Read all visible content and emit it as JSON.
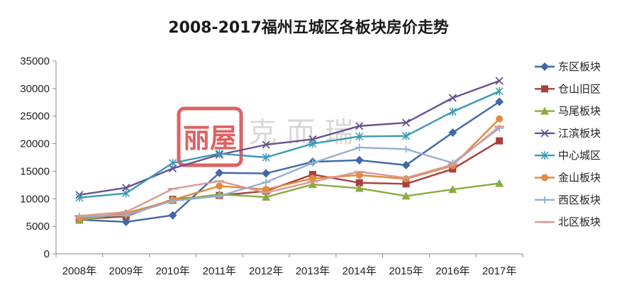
{
  "chart_data": {
    "type": "line",
    "title": "2008-2017福州五城区各板块房价走势",
    "xlabel": "",
    "ylabel": "",
    "categories": [
      "2008年",
      "2009年",
      "2010年",
      "2011年",
      "2012年",
      "2013年",
      "2014年",
      "2015年",
      "2016年",
      "2017年"
    ],
    "ylim": [
      0,
      35000
    ],
    "yticks": [
      0,
      5000,
      10000,
      15000,
      20000,
      25000,
      30000,
      35000
    ],
    "grid": false,
    "legend_position": "right",
    "series": [
      {
        "name": "东区板块",
        "color": "#3f68a8",
        "marker": "diamond",
        "values": [
          6200,
          5800,
          7000,
          14700,
          14600,
          16700,
          17000,
          16100,
          22000,
          27600
        ]
      },
      {
        "name": "仓山旧区",
        "color": "#a8403c",
        "marker": "square",
        "values": [
          6300,
          6800,
          9900,
          10600,
          11400,
          14400,
          12900,
          12700,
          15400,
          20500
        ]
      },
      {
        "name": "马尾板块",
        "color": "#8aac3f",
        "marker": "triangle",
        "values": [
          6100,
          7400,
          9700,
          10800,
          10300,
          12600,
          11900,
          10500,
          11700,
          12800
        ]
      },
      {
        "name": "江滨板块",
        "color": "#69518e",
        "marker": "x",
        "values": [
          10700,
          12000,
          15500,
          18000,
          19800,
          20800,
          23200,
          23800,
          28300,
          31400
        ]
      },
      {
        "name": "中心城区",
        "color": "#3a9ab3",
        "marker": "star",
        "values": [
          10200,
          11000,
          16500,
          18200,
          17500,
          20000,
          21300,
          21400,
          25800,
          29500
        ]
      },
      {
        "name": "金山板块",
        "color": "#e08b3d",
        "marker": "circle",
        "values": [
          6500,
          7300,
          9800,
          12300,
          11700,
          13700,
          14300,
          13600,
          16000,
          24500
        ]
      },
      {
        "name": "西区板块",
        "color": "#97aed4",
        "marker": "plus",
        "values": [
          6800,
          7000,
          9600,
          10500,
          13000,
          16500,
          19300,
          19000,
          16500,
          22800
        ]
      },
      {
        "name": "北区板块",
        "color": "#d89a96",
        "marker": "dash",
        "values": [
          6900,
          7600,
          11800,
          13200,
          11100,
          13100,
          14900,
          13800,
          16200,
          23100
        ]
      }
    ]
  },
  "watermark": {
    "seal_text": "丽屋",
    "text": "克而瑞",
    "seal_color": "#d63b3b"
  }
}
